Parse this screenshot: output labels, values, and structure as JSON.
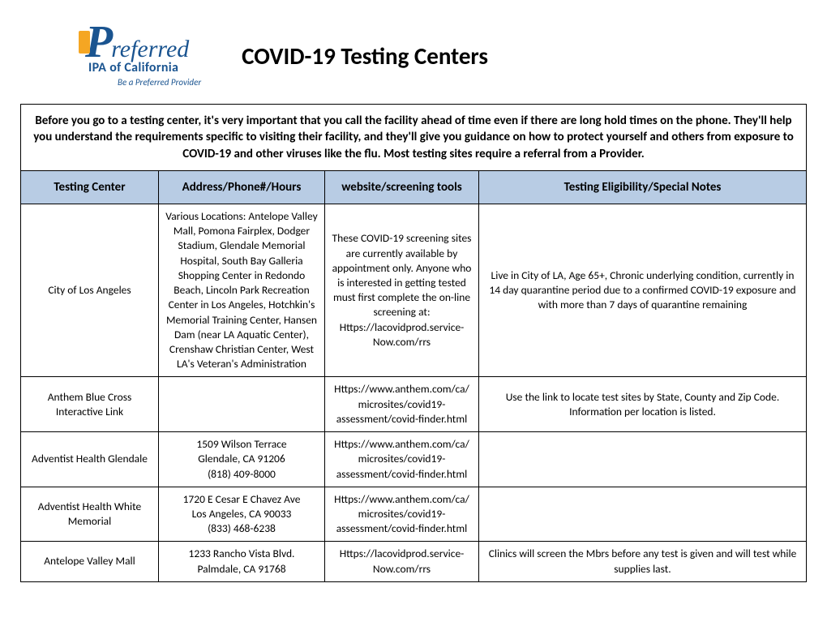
{
  "logo": {
    "p_letter": "P",
    "rest": "referred",
    "subtitle": "IPA of California",
    "tagline": "Be a Preferred Provider"
  },
  "title": "COVID-19 Testing Centers",
  "intro": "Before you go to a testing center, it's very important that you call the facility ahead of time even if there are long hold times on the phone. They'll help you understand the requirements specific to visiting their facility, and they'll give you guidance on how to protect yourself and others from exposure to COVID-19 and other viruses like the flu. Most testing sites require a referral from a Provider.",
  "columns": {
    "center": "Testing Center",
    "address": "Address/Phone#/Hours",
    "website": "website/screening tools",
    "notes": "Testing Eligibility/Special Notes"
  },
  "rows": [
    {
      "center": "City of Los Angeles",
      "address": "Various Locations: Antelope Valley Mall, Pomona Fairplex, Dodger Stadium, Glendale Memorial Hospital, South Bay Galleria Shopping Center in Redondo Beach, Lincoln Park Recreation Center in Los Angeles, Hotchkin's Memorial Training Center, Hansen Dam (near LA Aquatic Center), Crenshaw Christian Center, West LA's Veteran's Administration",
      "website": "These COVID-19 screening sites are currently available by appointment only. Anyone who is interested in getting tested must first complete the on-line screening at: Https://lacovidprod.service-Now.com/rrs",
      "notes": "Live in City of LA, Age 65+, Chronic underlying condition, currently in 14 day quarantine period due to a confirmed COVID-19 exposure and with more than 7 days of quarantine remaining"
    },
    {
      "center": "Anthem Blue Cross Interactive Link",
      "address": "",
      "website": "Https://www.anthem.com/ca/microsites/covid19-assessment/covid-finder.html",
      "notes": "Use the link to locate test sites by State, County and Zip Code. Information per location is listed."
    },
    {
      "center": "Adventist Health Glendale",
      "address": "1509 Wilson Terrace\nGlendale, CA 91206\n(818) 409-8000",
      "website": "Https://www.anthem.com/ca/microsites/covid19-assessment/covid-finder.html",
      "notes": ""
    },
    {
      "center": "Adventist Health White Memorial",
      "address": "1720 E Cesar E Chavez Ave\nLos Angeles, CA 90033\n(833) 468-6238",
      "website": "Https://www.anthem.com/ca/microsites/covid19-assessment/covid-finder.html",
      "notes": ""
    },
    {
      "center": "Antelope Valley Mall",
      "address": "1233 Rancho Vista Blvd.\nPalmdale, CA 91768",
      "website": "Https://lacovidprod.service-Now.com/rrs",
      "notes": "Clinics will screen the Mbrs before any test is given and  will test while supplies last."
    }
  ],
  "colors": {
    "header_bg": "#b8cce4",
    "border": "#000000",
    "logo_blue": "#1a5490",
    "logo_gold": "#f5a623",
    "background": "#ffffff"
  }
}
